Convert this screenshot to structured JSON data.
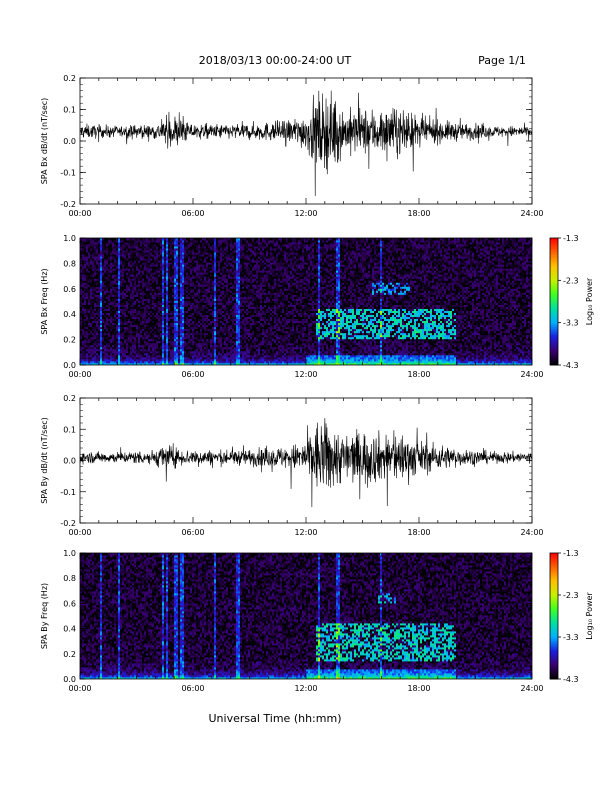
{
  "header": {
    "title": "2018/03/13  00:00-24:00 UT",
    "page": "Page 1/1"
  },
  "colorbar": {
    "label": "Log₁₀ Power",
    "ticks": [
      "-1.3",
      "-2.3",
      "-3.3",
      "-4.3"
    ],
    "range": [
      -4.3,
      -1.3
    ],
    "colors": [
      "#000000",
      "#3a0070",
      "#1a20e0",
      "#00b0ff",
      "#00e0a0",
      "#40ff20",
      "#c8f000",
      "#ffc000",
      "#ff6000",
      "#ff0000"
    ]
  },
  "x_axis": {
    "label": "Universal Time (hh:mm)",
    "ticks": [
      "00:00",
      "06:00",
      "12:00",
      "18:00",
      "24:00"
    ]
  },
  "chart_data": [
    {
      "type": "line",
      "ylabel": "SPA Bx dB/dt (nT/sec)",
      "xlim": [
        0,
        24
      ],
      "ylim": [
        -0.2,
        0.2
      ],
      "yticks": [
        "0.2",
        "0.1",
        "0.0",
        "-0.1",
        "-0.2"
      ],
      "baseline": 0.03,
      "amplitude_envelope": {
        "x": [
          0,
          2,
          4,
          5,
          6,
          8,
          10,
          11,
          12,
          12.5,
          13,
          13.5,
          14,
          15,
          16,
          17,
          18,
          19,
          20,
          22,
          24
        ],
        "y": [
          0.04,
          0.03,
          0.04,
          0.09,
          0.04,
          0.04,
          0.05,
          0.06,
          0.1,
          0.2,
          0.2,
          0.2,
          0.12,
          0.12,
          0.13,
          0.12,
          0.08,
          0.06,
          0.05,
          0.03,
          0.03
        ]
      }
    },
    {
      "type": "heatmap",
      "ylabel": "SPA Bx Freq (Hz)",
      "xlim": [
        0,
        24
      ],
      "ylim": [
        0.0,
        1.0
      ],
      "yticks": [
        "1.0",
        "0.8",
        "0.6",
        "0.4",
        "0.2",
        "0.0"
      ],
      "zlim": [
        -4.3,
        -1.3
      ],
      "enhancements": [
        {
          "x_range": [
            12.5,
            20
          ],
          "f_range": [
            0.2,
            0.45
          ],
          "level": -3.1
        },
        {
          "x_range": [
            15.5,
            17.5
          ],
          "f_range": [
            0.55,
            0.65
          ],
          "level": -3.4
        }
      ],
      "vertical_streaks_hours": [
        1.1,
        2.1,
        4.4,
        4.6,
        5.1,
        5.4,
        7.2,
        8.4,
        12.7,
        13.7,
        16.0
      ]
    },
    {
      "type": "line",
      "ylabel": "SPA By dB/dt (nT/sec)",
      "xlim": [
        0,
        24
      ],
      "ylim": [
        -0.2,
        0.2
      ],
      "yticks": [
        "0.2",
        "0.1",
        "0.0",
        "-0.1",
        "-0.2"
      ],
      "baseline": 0.01,
      "amplitude_envelope": {
        "x": [
          0,
          2,
          4,
          4.5,
          5,
          6,
          8,
          10,
          11,
          12,
          12.5,
          13,
          13.5,
          14,
          15,
          16,
          17,
          18,
          19,
          20,
          22,
          24
        ],
        "y": [
          0.03,
          0.03,
          0.04,
          0.08,
          0.05,
          0.04,
          0.04,
          0.05,
          0.06,
          0.09,
          0.2,
          0.2,
          0.18,
          0.13,
          0.15,
          0.13,
          0.14,
          0.09,
          0.07,
          0.05,
          0.03,
          0.03
        ]
      }
    },
    {
      "type": "heatmap",
      "ylabel": "SPA By Freq (Hz)",
      "xlim": [
        0,
        24
      ],
      "ylim": [
        0.0,
        1.0
      ],
      "yticks": [
        "1.0",
        "0.8",
        "0.6",
        "0.4",
        "0.2",
        "0.0"
      ],
      "zlim": [
        -4.3,
        -1.3
      ],
      "enhancements": [
        {
          "x_range": [
            12.5,
            20
          ],
          "f_range": [
            0.15,
            0.45
          ],
          "level": -3.1
        },
        {
          "x_range": [
            15.8,
            16.8
          ],
          "f_range": [
            0.6,
            0.68
          ],
          "level": -3.3
        }
      ],
      "vertical_streaks_hours": [
        1.1,
        2.1,
        4.4,
        4.6,
        5.1,
        5.4,
        7.2,
        8.4,
        12.7,
        13.7,
        16.0
      ]
    }
  ]
}
